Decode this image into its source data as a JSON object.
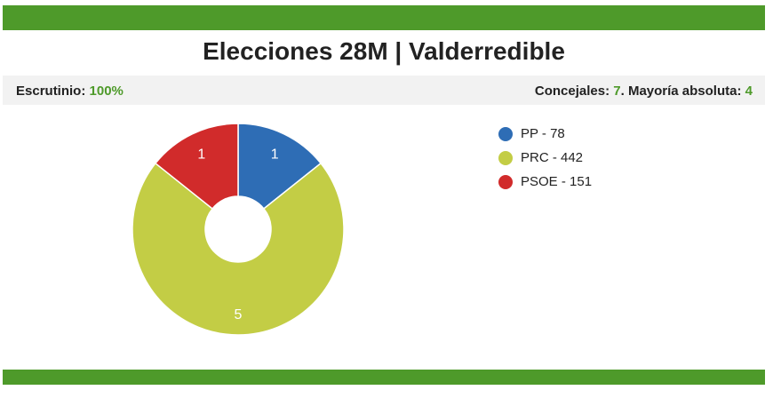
{
  "title": "Elecciones 28M | Valderredible",
  "colors": {
    "bar": "#4e9a2a",
    "accent_text": "#4e9a2a"
  },
  "info": {
    "scrutiny_label": "Escrutinio:",
    "scrutiny_value": "100%",
    "councillors_label": "Concejales:",
    "councillors_value": "7",
    "majority_label": ". Mayoría absoluta:",
    "majority_value": "4"
  },
  "chart_data": {
    "type": "pie",
    "donut": true,
    "categories": [
      "PP",
      "PRC",
      "PSOE"
    ],
    "values": [
      1,
      5,
      1
    ],
    "colors": [
      "#2e6db5",
      "#c3cd45",
      "#d12b2b"
    ],
    "slice_labels": [
      "1",
      "5",
      "1"
    ],
    "legend": [
      {
        "label": "PP - 78",
        "color": "#2e6db5"
      },
      {
        "label": "PRC - 442",
        "color": "#c3cd45"
      },
      {
        "label": "PSOE - 151",
        "color": "#d12b2b"
      }
    ],
    "legend_position": "right"
  }
}
